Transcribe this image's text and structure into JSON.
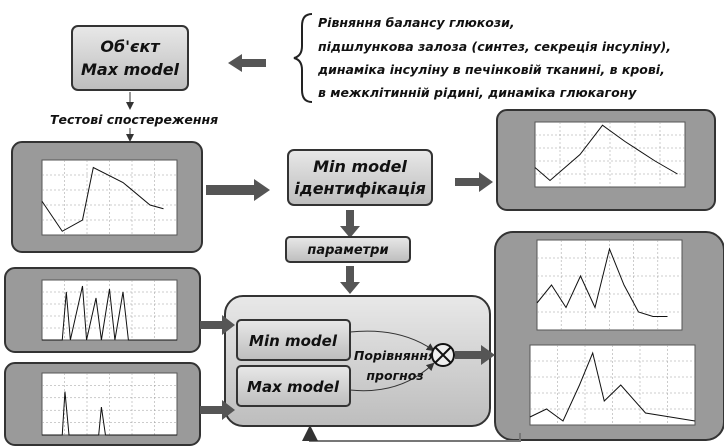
{
  "object_box": {
    "line1": "Об'єкт",
    "line2": "Max model"
  },
  "description": [
    "Рівняння балансу глюкози,",
    "підшлункова залоза (синтез, секреція інсуліну),",
    "динаміка інсуліну в печінковій тканині, в крові,",
    "в межклітинній рідині, динаміка глюкагону"
  ],
  "observations": "Тестові спостереження",
  "identification_box": {
    "line1": "Min model",
    "line2": "ідентифікація"
  },
  "parameters": "параметри",
  "comparison": {
    "min_model": "Min model",
    "max_model": "Max model",
    "line1": "Порівняння",
    "line2": "прогноз"
  }
}
